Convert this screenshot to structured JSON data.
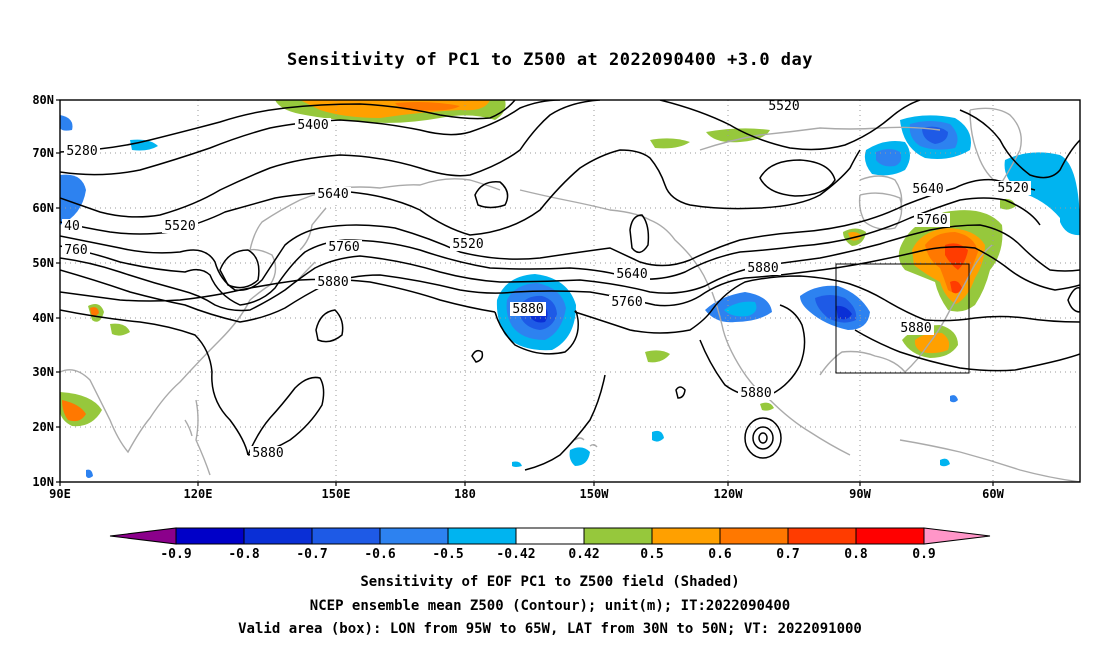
{
  "title": "Sensitivity of PC1 to Z500 at 2022090400 +3.0 day",
  "axes": {
    "lat_labels": [
      "10N",
      "20N",
      "30N",
      "40N",
      "50N",
      "60N",
      "70N",
      "80N"
    ],
    "lon_labels": [
      "90E",
      "120E",
      "150E",
      "180",
      "150W",
      "120W",
      "90W",
      "60W"
    ]
  },
  "contours": {
    "labels": [
      "5280",
      "5400",
      "5520",
      "5520",
      "5520",
      "5520",
      "5640",
      "5640",
      "5640",
      "5760",
      "5760",
      "5760",
      "5880",
      "5880",
      "5880",
      "5880",
      "5880",
      "5880",
      "40",
      "760"
    ]
  },
  "colorbar": {
    "labels": [
      "-0.9",
      "-0.8",
      "-0.7",
      "-0.6",
      "-0.5",
      "-0.42",
      "0.42",
      "0.5",
      "0.6",
      "0.7",
      "0.8",
      "0.9"
    ],
    "colors": [
      "#8b008b",
      "#0000c8",
      "#0a2fd6",
      "#1e5ae6",
      "#2d82f0",
      "#00b4f0",
      "#ffffff",
      "#96c83c",
      "#ffa000",
      "#ff7800",
      "#ff3c00",
      "#ff0000",
      "#ff96c8"
    ]
  },
  "valid_area": {
    "lon_from": "95W",
    "lon_to": "65W",
    "lat_from": "30N",
    "lat_to": "50N"
  },
  "captions": [
    "Sensitivity of EOF PC1 to Z500 field (Shaded)",
    "NCEP ensemble mean Z500 (Contour); unit(m); IT:2022090400",
    "Valid area (box): LON from 95W to 65W, LAT from 30N to 50N; VT: 2022091000"
  ]
}
